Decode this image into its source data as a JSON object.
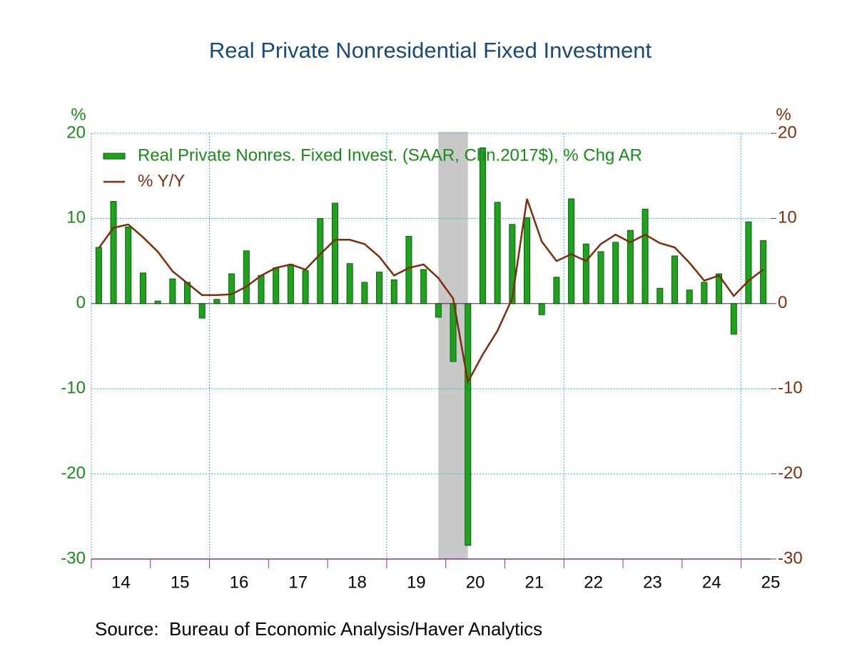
{
  "chart_data": {
    "type": "bar",
    "title": "Real Private Nonresidential Fixed Investment",
    "y_unit": "%",
    "y2_unit": "%",
    "year_labels": [
      "14",
      "15",
      "16",
      "17",
      "18",
      "19",
      "20",
      "21",
      "22",
      "23",
      "24",
      "25"
    ],
    "series": [
      {
        "name": "Real Private Nonres. Fixed Invest. (SAAR, Chn.2017$), % Chg AR",
        "type": "bar",
        "color": "#1fa31f",
        "values": [
          6.6,
          12.0,
          9.0,
          3.6,
          0.3,
          2.9,
          2.5,
          -1.7,
          0.5,
          3.5,
          6.2,
          3.3,
          4.2,
          4.6,
          3.9,
          10.0,
          11.8,
          4.7,
          2.5,
          3.7,
          2.8,
          7.9,
          4.0,
          -1.6,
          -6.8,
          -28.4,
          18.3,
          11.9,
          9.3,
          10.1,
          -1.3,
          3.1,
          12.3,
          7.0,
          6.1,
          7.2,
          8.6,
          11.1,
          1.8,
          5.6,
          1.6,
          2.5,
          3.5,
          -3.6,
          9.6,
          7.4
        ]
      },
      {
        "name": "% Y/Y",
        "type": "line",
        "axis": "y2",
        "color": "#7a2e0e",
        "values": [
          6.5,
          8.9,
          9.3,
          7.8,
          6.1,
          3.8,
          2.4,
          1.0,
          1.0,
          1.1,
          2.0,
          3.3,
          4.2,
          4.6,
          4.0,
          5.8,
          7.5,
          7.5,
          7.0,
          5.5,
          3.3,
          4.2,
          4.6,
          3.0,
          0.6,
          -9.2,
          -6.0,
          -3.2,
          0.6,
          12.3,
          7.3,
          5.0,
          5.8,
          5.0,
          7.0,
          8.1,
          7.2,
          8.1,
          7.1,
          6.6,
          4.8,
          2.7,
          3.3,
          0.9,
          2.7,
          4.0
        ]
      }
    ],
    "ylim": [
      -30,
      20
    ],
    "yticks": [
      -30,
      -20,
      -10,
      0,
      10,
      20
    ],
    "y2lim": [
      -30,
      20
    ],
    "y2ticks": [
      -30,
      -20,
      -10,
      0,
      10,
      20
    ],
    "grid": true,
    "source": "Source:  Bureau of Economic Analysis/Haver Analytics"
  }
}
